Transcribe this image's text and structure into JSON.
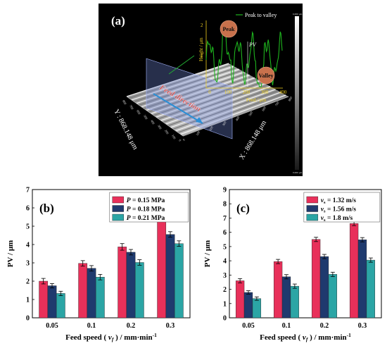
{
  "panel_a": {
    "label": "(a)",
    "legend": "Peak to valley",
    "peak_label": "Peak",
    "valley_label": "Valley",
    "pv_label": "PV",
    "feed_direction_label": "Feed direction",
    "y_axis_label": "Y : 868.148 μm",
    "x_axis_label": "X : 868.148 μm",
    "inset_ylabel": "Height / μm",
    "inset_xlabel": "Feed / μm",
    "inset_yticks": [
      "1",
      "2"
    ],
    "inset_xticks": [
      "0",
      "100",
      "200",
      "300",
      "400"
    ],
    "axis_y_ticks": [
      "0",
      "100",
      "200",
      "300",
      "400",
      "500",
      "600",
      "700",
      "800"
    ],
    "axis_x_ticks": [
      "0",
      "100",
      "200",
      "300",
      "400",
      "500",
      "600",
      "700",
      "800"
    ],
    "colorbar_top": "6.000 μm",
    "colorbar_bottom": "0.000 μm",
    "colors": {
      "background": "#000000",
      "surface": "#b8b8b8",
      "inset_line": "#1eb41e",
      "marker": "#c8714c",
      "arrow": "#2a8fd6",
      "feed_text": "#d33a3a"
    }
  },
  "chart_data": [
    {
      "type": "bar",
      "panel_label": "(b)",
      "categories": [
        "0.05",
        "0.1",
        "0.2",
        "0.3"
      ],
      "series": [
        {
          "name": "P = 0.15 MPa",
          "values": [
            2.0,
            2.97,
            3.87,
            5.5
          ],
          "errors": [
            0.15,
            0.15,
            0.18,
            0.15
          ],
          "color": "#e8305a"
        },
        {
          "name": "P = 0.18 MPa",
          "values": [
            1.75,
            2.7,
            3.58,
            4.55
          ],
          "errors": [
            0.12,
            0.15,
            0.15,
            0.15
          ],
          "color": "#1f3a6e"
        },
        {
          "name": "P = 0.21 MPa",
          "values": [
            1.33,
            2.22,
            3.02,
            4.05
          ],
          "errors": [
            0.12,
            0.15,
            0.15,
            0.15
          ],
          "color": "#2ba5a5"
        }
      ],
      "legend_vars": [
        "P",
        "P",
        "P"
      ],
      "legend_rest": [
        " = 0.15 MPa",
        " = 0.18 MPa",
        " = 0.21 MPa"
      ],
      "ylabel": "PV / μm",
      "xlabel": "Feed speed ( vf ) / mm·min⁻¹",
      "xlabel_pre": "Feed speed ( ",
      "xlabel_var": "v",
      "xlabel_sub": "f",
      "xlabel_post": " ) / mm·min",
      "xlabel_sup": "-1",
      "ylim": [
        0,
        7
      ],
      "yticks": [
        0,
        1,
        2,
        3,
        4,
        5,
        6,
        7
      ],
      "legend_position": "top-left"
    },
    {
      "type": "bar",
      "panel_label": "(c)",
      "categories": [
        "0.05",
        "0.1",
        "0.2",
        "0.3"
      ],
      "series": [
        {
          "name": "vs = 1.32 m/s",
          "values": [
            2.6,
            3.95,
            5.5,
            6.62
          ],
          "errors": [
            0.15,
            0.15,
            0.15,
            0.15
          ],
          "color": "#e8305a"
        },
        {
          "name": "vs = 1.56 m/s",
          "values": [
            1.78,
            2.88,
            4.3,
            5.48
          ],
          "errors": [
            0.12,
            0.15,
            0.15,
            0.15
          ],
          "color": "#1f3a6e"
        },
        {
          "name": "vs = 1.8 m/s",
          "values": [
            1.35,
            2.22,
            3.05,
            4.05
          ],
          "errors": [
            0.12,
            0.15,
            0.15,
            0.15
          ],
          "color": "#2ba5a5"
        }
      ],
      "legend_vars": [
        "v",
        "v",
        "v"
      ],
      "legend_subs": [
        "s",
        "s",
        "s"
      ],
      "legend_rest": [
        " = 1.32 m/s",
        " = 1.56 m/s",
        " = 1.8 m/s"
      ],
      "ylabel": "PV / μm",
      "xlabel": "Feed speed ( vf ) / mm·min⁻¹",
      "xlabel_pre": "Feed speed ( ",
      "xlabel_var": "v",
      "xlabel_sub": "f",
      "xlabel_post": " ) / mm·min",
      "xlabel_sup": "-1",
      "ylim": [
        0,
        9
      ],
      "yticks": [
        0,
        1,
        2,
        3,
        4,
        5,
        6,
        7,
        8,
        9
      ],
      "legend_position": "top-left"
    }
  ]
}
